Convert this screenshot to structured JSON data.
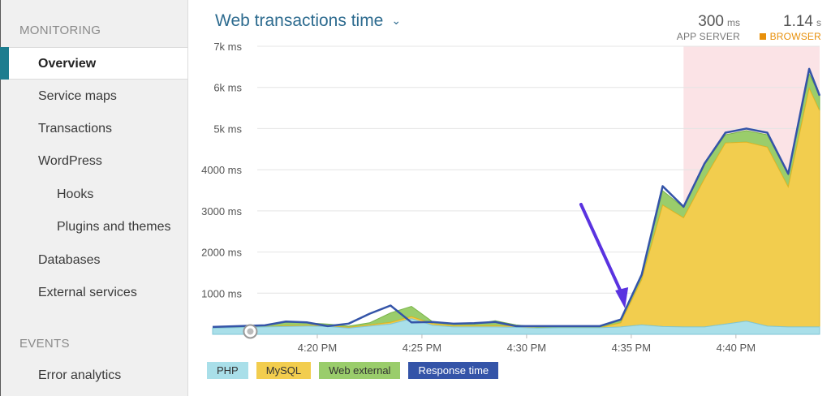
{
  "sidebar": {
    "monitoring_label": "MONITORING",
    "items": [
      {
        "label": "Overview"
      },
      {
        "label": "Service maps"
      },
      {
        "label": "Transactions"
      },
      {
        "label": "WordPress"
      },
      {
        "label": "Hooks"
      },
      {
        "label": "Plugins and themes"
      },
      {
        "label": "Databases"
      },
      {
        "label": "External services"
      }
    ],
    "events_label": "EVENTS",
    "events_items": [
      {
        "label": "Error analytics"
      }
    ]
  },
  "header": {
    "title": "Web transactions time",
    "app_server": {
      "value": "300",
      "unit": "ms",
      "label": "APP SERVER"
    },
    "browser": {
      "value": "1.14",
      "unit": "s",
      "label": "BROWSER"
    }
  },
  "legend": {
    "php": "PHP",
    "mysql": "MySQL",
    "web_external": "Web external",
    "response_time": "Response time"
  },
  "colors": {
    "php": "#a9dfe9",
    "mysql": "#f2cd4e",
    "web_external": "#9acd6b",
    "response_time": "#3454a8",
    "highlight": "#fbe3e6"
  },
  "annotation": {
    "arrow": "purple arrow pointing at the start of the spike near 4:35 PM"
  },
  "chart_data": {
    "type": "area",
    "title": "Web transactions time",
    "y_unit": "ms",
    "ylim": [
      0,
      7000
    ],
    "y_ticks": [
      {
        "value": 1000,
        "label": "1000 ms"
      },
      {
        "value": 2000,
        "label": "2000 ms"
      },
      {
        "value": 3000,
        "label": "3000 ms"
      },
      {
        "value": 4000,
        "label": "4000 ms"
      },
      {
        "value": 5000,
        "label": "5k ms"
      },
      {
        "value": 6000,
        "label": "6k ms"
      },
      {
        "value": 7000,
        "label": "7k ms"
      }
    ],
    "x_unit": "minutes after 4:15 PM",
    "x_ticks": [
      {
        "value": 5,
        "label": "4:20 PM"
      },
      {
        "value": 10,
        "label": "4:25 PM"
      },
      {
        "value": 15,
        "label": "4:30 PM"
      },
      {
        "value": 20,
        "label": "4:35 PM"
      },
      {
        "value": 25,
        "label": "4:40 PM"
      }
    ],
    "x": [
      0,
      2.5,
      3.5,
      4.5,
      5.5,
      6.5,
      7.5,
      8.5,
      9.5,
      10.5,
      11.5,
      12.5,
      13.5,
      14.5,
      15.5,
      16.5,
      17.5,
      18.5,
      19.5,
      20.5,
      21.5,
      22.5,
      23.5,
      24.5,
      25.5,
      26.5,
      27.5,
      28.5,
      29
    ],
    "highlight_region": [
      22.5,
      29
    ],
    "series": [
      {
        "name": "PHP",
        "values": [
          150,
          180,
          190,
          200,
          190,
          150,
          200,
          250,
          380,
          220,
          180,
          180,
          180,
          170,
          150,
          160,
          160,
          160,
          180,
          230,
          190,
          180,
          180,
          250,
          320,
          200,
          180,
          180,
          180
        ]
      },
      {
        "name": "MySQL",
        "values": [
          0,
          0,
          20,
          20,
          20,
          20,
          30,
          40,
          50,
          40,
          30,
          30,
          30,
          30,
          0,
          0,
          0,
          0,
          100,
          1100,
          2950,
          2650,
          3600,
          4400,
          4350,
          4350,
          3400,
          5800,
          5250
        ]
      },
      {
        "name": "Web external",
        "values": [
          0,
          40,
          80,
          60,
          40,
          30,
          50,
          230,
          250,
          50,
          50,
          40,
          120,
          30,
          30,
          20,
          20,
          20,
          60,
          120,
          350,
          250,
          350,
          200,
          280,
          300,
          300,
          350,
          380
        ]
      },
      {
        "name": "Response time",
        "values": [
          180,
          220,
          310,
          290,
          200,
          260,
          500,
          700,
          290,
          300,
          260,
          270,
          300,
          200,
          200,
          200,
          200,
          200,
          360,
          1450,
          3600,
          3100,
          4150,
          4900,
          5000,
          4900,
          3900,
          6450,
          5800
        ]
      }
    ]
  }
}
